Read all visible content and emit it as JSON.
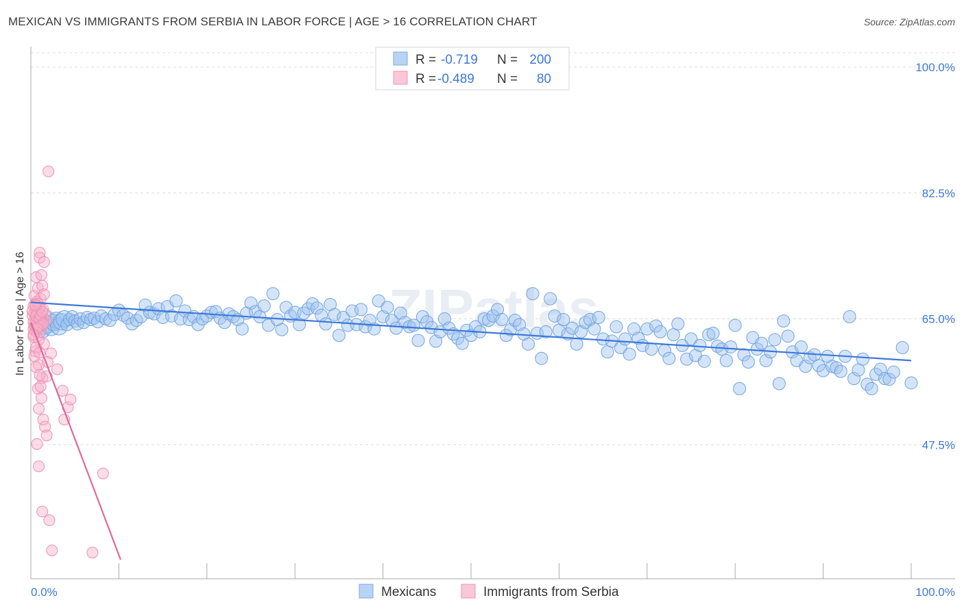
{
  "header": {
    "title": "MEXICAN VS IMMIGRANTS FROM SERBIA IN LABOR FORCE | AGE > 16 CORRELATION CHART",
    "source": "Source: ZipAtlas.com"
  },
  "colors": {
    "blue": "#6fa3e0",
    "blue_fill": "rgba(160,196,240,0.45)",
    "blue_line": "#3b78d8",
    "pink": "#ef8fb1",
    "pink_fill": "rgba(246,178,202,0.45)",
    "pink_line": "#e0679a",
    "tick_text": "#3b78d8",
    "grid": "#d9d9d9"
  },
  "chart_data": {
    "type": "scatter",
    "title": "MEXICAN VS IMMIGRANTS FROM SERBIA IN LABOR FORCE | AGE > 16 CORRELATION CHART",
    "xlabel": "",
    "ylabel": "In Labor Force | Age > 16",
    "xlim": [
      0,
      100
    ],
    "ylim": [
      30,
      102
    ],
    "y_ticks": [
      47.5,
      65.0,
      82.5,
      100.0
    ],
    "y_tick_labels": [
      "47.5%",
      "65.0%",
      "82.5%",
      "100.0%"
    ],
    "x_tick_labels": [
      "0.0%",
      "100.0%"
    ],
    "watermark": "ZIPatlas",
    "legend_position": "top-center",
    "legend": [
      {
        "name": "Mexicans",
        "R": "-0.719",
        "N": "200",
        "r_label": "R =",
        "n_label": "N ="
      },
      {
        "name": "Immigrants from Serbia",
        "R": "-0.489",
        "N": "80",
        "r_label": "R =",
        "n_label": "N ="
      }
    ],
    "series": [
      {
        "name": "Mexicans",
        "trend": {
          "x0": 0,
          "y0": 67.3,
          "x1": 100,
          "y1": 59.2
        },
        "points": [
          [
            0.8,
            63.8
          ],
          [
            1.0,
            64.6
          ],
          [
            1.3,
            63.5
          ],
          [
            1.6,
            64.0
          ],
          [
            1.8,
            65.0
          ],
          [
            2.0,
            64.2
          ],
          [
            2.3,
            63.8
          ],
          [
            2.6,
            64.5
          ],
          [
            2.9,
            64.8
          ],
          [
            3.2,
            63.9
          ],
          [
            3.5,
            64.6
          ],
          [
            3.8,
            65.0
          ],
          [
            4.1,
            64.2
          ],
          [
            4.4,
            64.9
          ],
          [
            4.7,
            65.3
          ],
          [
            5.0,
            64.7
          ],
          [
            5.3,
            64.3
          ],
          [
            5.6,
            65.0
          ],
          [
            6.0,
            64.5
          ],
          [
            6.4,
            65.2
          ],
          [
            6.8,
            64.9
          ],
          [
            7.2,
            65.1
          ],
          [
            7.6,
            64.6
          ],
          [
            8.0,
            65.4
          ],
          [
            8.5,
            65.0
          ],
          [
            9.0,
            64.8
          ],
          [
            9.5,
            65.6
          ],
          [
            10.0,
            66.2
          ],
          [
            10.5,
            65.5
          ],
          [
            11.0,
            65.1
          ],
          [
            11.5,
            64.3
          ],
          [
            12.0,
            64.8
          ],
          [
            12.5,
            65.3
          ],
          [
            13.0,
            66.9
          ],
          [
            13.5,
            65.9
          ],
          [
            14.0,
            65.7
          ],
          [
            14.5,
            66.4
          ],
          [
            15.0,
            65.2
          ],
          [
            15.5,
            66.7
          ],
          [
            16.0,
            65.4
          ],
          [
            16.5,
            67.5
          ],
          [
            17.0,
            65.0
          ],
          [
            17.5,
            66.1
          ],
          [
            18.0,
            64.9
          ],
          [
            18.5,
            65.3
          ],
          [
            19.0,
            64.2
          ],
          [
            19.5,
            65.0
          ],
          [
            20.0,
            65.4
          ],
          [
            20.5,
            65.9
          ],
          [
            21.0,
            66.0
          ],
          [
            21.5,
            65.1
          ],
          [
            22.0,
            64.5
          ],
          [
            22.5,
            65.7
          ],
          [
            23.0,
            65.3
          ],
          [
            23.5,
            64.9
          ],
          [
            24.0,
            63.6
          ],
          [
            24.5,
            65.8
          ],
          [
            25.0,
            67.2
          ],
          [
            25.5,
            66.0
          ],
          [
            26.0,
            65.3
          ],
          [
            26.5,
            66.8
          ],
          [
            27.0,
            64.1
          ],
          [
            27.5,
            68.5
          ],
          [
            28.0,
            64.9
          ],
          [
            28.5,
            63.5
          ],
          [
            29.0,
            66.6
          ],
          [
            29.5,
            65.4
          ],
          [
            30.0,
            65.9
          ],
          [
            30.5,
            64.2
          ],
          [
            31.0,
            65.8
          ],
          [
            31.5,
            66.4
          ],
          [
            32.0,
            67.1
          ],
          [
            32.5,
            66.5
          ],
          [
            33.0,
            65.5
          ],
          [
            33.5,
            64.3
          ],
          [
            34.0,
            67.0
          ],
          [
            34.5,
            65.6
          ],
          [
            35.0,
            62.7
          ],
          [
            35.5,
            65.2
          ],
          [
            36.0,
            64.1
          ],
          [
            36.5,
            66.1
          ],
          [
            37.0,
            64.2
          ],
          [
            37.5,
            66.3
          ],
          [
            38.0,
            63.9
          ],
          [
            38.5,
            64.8
          ],
          [
            39.0,
            63.6
          ],
          [
            39.5,
            67.5
          ],
          [
            40.0,
            65.3
          ],
          [
            40.5,
            66.6
          ],
          [
            41.0,
            64.8
          ],
          [
            41.5,
            63.7
          ],
          [
            42.0,
            65.8
          ],
          [
            42.5,
            64.5
          ],
          [
            43.0,
            63.9
          ],
          [
            43.5,
            64.1
          ],
          [
            44.0,
            62.0
          ],
          [
            44.5,
            65.3
          ],
          [
            45.0,
            64.6
          ],
          [
            45.5,
            63.8
          ],
          [
            46.0,
            61.9
          ],
          [
            46.5,
            63.2
          ],
          [
            47.0,
            65.0
          ],
          [
            47.5,
            63.7
          ],
          [
            48.0,
            62.9
          ],
          [
            48.5,
            62.3
          ],
          [
            49.0,
            61.6
          ],
          [
            49.5,
            63.4
          ],
          [
            50.0,
            62.7
          ],
          [
            50.5,
            63.9
          ],
          [
            51.0,
            63.2
          ],
          [
            51.5,
            65.0
          ],
          [
            52.0,
            64.8
          ],
          [
            52.5,
            65.4
          ],
          [
            53.0,
            66.3
          ],
          [
            53.5,
            64.9
          ],
          [
            54.0,
            62.7
          ],
          [
            54.5,
            63.5
          ],
          [
            55.0,
            64.8
          ],
          [
            55.5,
            64.2
          ],
          [
            56.0,
            62.9
          ],
          [
            56.5,
            61.5
          ],
          [
            57.0,
            68.5
          ],
          [
            57.5,
            63.0
          ],
          [
            58.0,
            59.5
          ],
          [
            58.5,
            63.2
          ],
          [
            59.0,
            67.8
          ],
          [
            59.5,
            65.4
          ],
          [
            60.0,
            63.4
          ],
          [
            60.5,
            64.9
          ],
          [
            61.0,
            62.9
          ],
          [
            61.5,
            63.7
          ],
          [
            62.0,
            61.5
          ],
          [
            62.5,
            63.2
          ],
          [
            63.0,
            64.5
          ],
          [
            63.5,
            64.9
          ],
          [
            64.0,
            63.6
          ],
          [
            64.5,
            65.2
          ],
          [
            65.0,
            62.2
          ],
          [
            65.5,
            60.4
          ],
          [
            66.0,
            61.9
          ],
          [
            66.5,
            63.9
          ],
          [
            67.0,
            61.0
          ],
          [
            67.5,
            62.2
          ],
          [
            68.0,
            60.1
          ],
          [
            68.5,
            63.6
          ],
          [
            69.0,
            62.3
          ],
          [
            69.5,
            61.3
          ],
          [
            70.0,
            63.6
          ],
          [
            70.5,
            60.8
          ],
          [
            71.0,
            64.0
          ],
          [
            71.5,
            63.2
          ],
          [
            72.0,
            60.6
          ],
          [
            72.5,
            59.5
          ],
          [
            73.0,
            62.8
          ],
          [
            73.5,
            64.3
          ],
          [
            74.0,
            61.3
          ],
          [
            74.5,
            59.4
          ],
          [
            75.0,
            62.2
          ],
          [
            75.5,
            59.9
          ],
          [
            76.0,
            61.3
          ],
          [
            76.5,
            59.1
          ],
          [
            77.0,
            62.8
          ],
          [
            77.5,
            63.0
          ],
          [
            78.0,
            61.2
          ],
          [
            78.5,
            60.8
          ],
          [
            79.0,
            59.2
          ],
          [
            79.5,
            61.1
          ],
          [
            80.0,
            64.1
          ],
          [
            80.5,
            55.3
          ],
          [
            81.0,
            60.0
          ],
          [
            81.5,
            59.0
          ],
          [
            82.0,
            62.4
          ],
          [
            82.5,
            60.8
          ],
          [
            83.0,
            61.6
          ],
          [
            83.5,
            59.2
          ],
          [
            84.0,
            60.4
          ],
          [
            84.5,
            62.1
          ],
          [
            85.0,
            56.0
          ],
          [
            85.5,
            64.7
          ],
          [
            86.0,
            62.6
          ],
          [
            86.5,
            60.4
          ],
          [
            87.0,
            59.2
          ],
          [
            87.5,
            61.1
          ],
          [
            88.0,
            58.4
          ],
          [
            88.5,
            59.6
          ],
          [
            89.0,
            60.0
          ],
          [
            89.5,
            58.5
          ],
          [
            90.0,
            57.8
          ],
          [
            90.5,
            59.8
          ],
          [
            91.0,
            58.4
          ],
          [
            91.5,
            58.2
          ],
          [
            92.0,
            57.7
          ],
          [
            92.5,
            59.8
          ],
          [
            93.0,
            65.3
          ],
          [
            93.5,
            56.7
          ],
          [
            94.0,
            57.9
          ],
          [
            94.5,
            59.4
          ],
          [
            95.0,
            55.9
          ],
          [
            95.5,
            55.3
          ],
          [
            96.0,
            57.3
          ],
          [
            96.5,
            58.0
          ],
          [
            97.0,
            56.7
          ],
          [
            97.5,
            56.6
          ],
          [
            98.0,
            57.6
          ],
          [
            99.0,
            61.0
          ],
          [
            100.0,
            56.1
          ]
        ]
      },
      {
        "name": "Immigrants from Serbia",
        "trend": {
          "x0": 0,
          "y0": 64.5,
          "x1": 10.2,
          "y1": 31.5
        },
        "points": [
          [
            0.2,
            65.5
          ],
          [
            0.3,
            62.5
          ],
          [
            0.3,
            66.8
          ],
          [
            0.4,
            64.0
          ],
          [
            0.4,
            68.2
          ],
          [
            0.5,
            60.5
          ],
          [
            0.5,
            63.3
          ],
          [
            0.6,
            65.9
          ],
          [
            0.6,
            70.8
          ],
          [
            0.7,
            67.4
          ],
          [
            0.7,
            64.9
          ],
          [
            0.8,
            69.3
          ],
          [
            0.8,
            66.2
          ],
          [
            0.9,
            58.6
          ],
          [
            0.9,
            62.1
          ],
          [
            1.0,
            74.2
          ],
          [
            1.0,
            73.5
          ],
          [
            1.1,
            65.1
          ],
          [
            1.1,
            67.8
          ],
          [
            1.2,
            71.1
          ],
          [
            1.2,
            64.4
          ],
          [
            1.3,
            56.8
          ],
          [
            1.3,
            69.6
          ],
          [
            1.4,
            66.3
          ],
          [
            1.5,
            72.9
          ],
          [
            1.5,
            68.4
          ],
          [
            1.6,
            65.7
          ],
          [
            1.7,
            64.8
          ],
          [
            1.8,
            57.0
          ],
          [
            2.0,
            85.5
          ],
          [
            0.3,
            64.6
          ],
          [
            0.4,
            65.8
          ],
          [
            0.5,
            67.0
          ],
          [
            0.6,
            63.9
          ],
          [
            0.7,
            66.0
          ],
          [
            0.8,
            64.2
          ],
          [
            0.9,
            65.2
          ],
          [
            1.0,
            66.6
          ],
          [
            1.1,
            63.2
          ],
          [
            1.2,
            64.1
          ],
          [
            0.2,
            66.1
          ],
          [
            0.3,
            63.6
          ],
          [
            0.5,
            64.5
          ],
          [
            0.6,
            65.4
          ],
          [
            0.8,
            67.1
          ],
          [
            0.9,
            63.9
          ],
          [
            1.0,
            64.9
          ],
          [
            1.1,
            65.5
          ],
          [
            1.3,
            66.0
          ],
          [
            1.4,
            64.3
          ],
          [
            0.4,
            59.8
          ],
          [
            0.6,
            58.3
          ],
          [
            0.8,
            55.3
          ],
          [
            1.0,
            57.2
          ],
          [
            1.2,
            54.0
          ],
          [
            1.4,
            51.0
          ],
          [
            1.6,
            50.0
          ],
          [
            1.8,
            48.8
          ],
          [
            0.9,
            52.5
          ],
          [
            1.1,
            55.6
          ],
          [
            2.3,
            60.2
          ],
          [
            3.0,
            58.0
          ],
          [
            3.6,
            55.0
          ],
          [
            3.8,
            51.0
          ],
          [
            4.2,
            52.7
          ],
          [
            4.5,
            53.8
          ],
          [
            0.7,
            47.6
          ],
          [
            0.9,
            44.5
          ],
          [
            1.3,
            38.2
          ],
          [
            2.1,
            37.0
          ],
          [
            2.4,
            32.8
          ],
          [
            7.0,
            32.5
          ],
          [
            8.2,
            43.5
          ],
          [
            0.5,
            66.9
          ],
          [
            0.7,
            63.7
          ],
          [
            1.5,
            61.5
          ],
          [
            0.3,
            62.8
          ],
          [
            0.6,
            61.0
          ],
          [
            1.0,
            60.3
          ],
          [
            1.9,
            59.0
          ]
        ]
      }
    ]
  }
}
